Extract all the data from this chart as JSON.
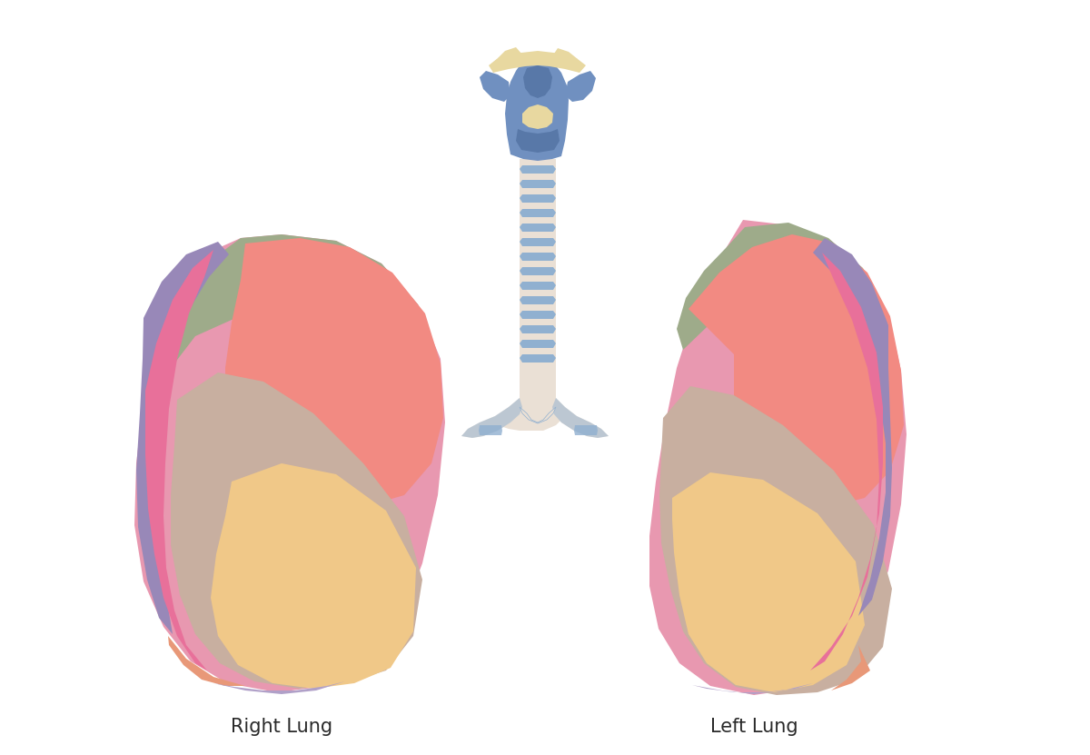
{
  "background_color": "#ffffff",
  "right_lung_label": "Right Lung",
  "left_lung_label": "Left Lung",
  "label_fontsize": 15,
  "colors": {
    "sage_green": "#9EAB8A",
    "salmon_red": "#F28A82",
    "mauve": "#C8A8C0",
    "peach": "#F0C888",
    "tan": "#C8AFA0",
    "pink_hot": "#E8709A",
    "pink_mid": "#E898B0",
    "orange_coral": "#E89878",
    "purple_muted": "#9888B8",
    "purple_light": "#B0A0C8",
    "blue_larynx": "#7090C0",
    "blue_dark": "#5878A8",
    "cream_larynx": "#E8D8A0",
    "trachea_bg": "#EAE0D5",
    "trachea_ring": "#90B0D0",
    "shadow": "#C8C0BC"
  }
}
